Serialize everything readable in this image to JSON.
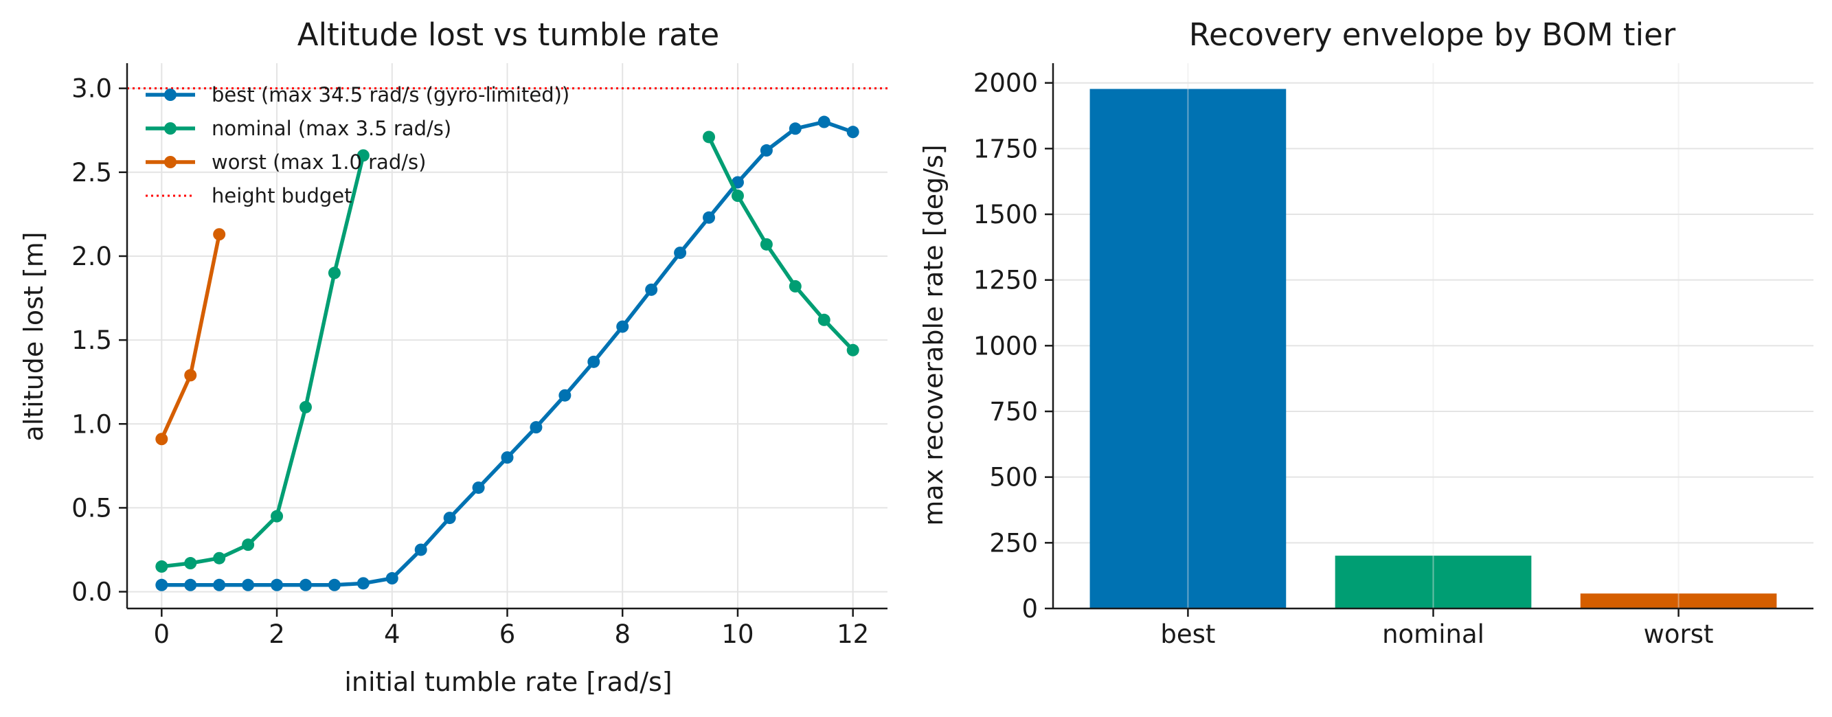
{
  "colors": {
    "best": "#0072b2",
    "nominal": "#009e73",
    "worst": "#d55e00",
    "budget": "#ff0000"
  },
  "chart_data": [
    {
      "type": "line",
      "title": "Altitude lost vs tumble rate",
      "xlabel": "initial tumble rate [rad/s]",
      "ylabel": "altitude lost [m]",
      "xlim": [
        -0.6,
        12.6
      ],
      "ylim": [
        -0.1,
        3.15
      ],
      "xticks": [
        0,
        2,
        4,
        6,
        8,
        10,
        12
      ],
      "yticks": [
        0.0,
        0.5,
        1.0,
        1.5,
        2.0,
        2.5,
        3.0
      ],
      "grid": true,
      "legend_position": "upper-left",
      "series": [
        {
          "key": "best",
          "name": "best (max 34.5 rad/s (gyro-limited))",
          "marker": "circle",
          "x": [
            0,
            0.5,
            1,
            1.5,
            2,
            2.5,
            3,
            3.5,
            4,
            4.5,
            5,
            5.5,
            6,
            6.5,
            7,
            7.5,
            8,
            8.5,
            9,
            9.5,
            10,
            10.5,
            11,
            11.5,
            12
          ],
          "y": [
            0.04,
            0.04,
            0.04,
            0.04,
            0.04,
            0.04,
            0.04,
            0.05,
            0.08,
            0.25,
            0.44,
            0.62,
            0.8,
            0.98,
            1.17,
            1.37,
            1.58,
            1.8,
            2.02,
            2.23,
            2.44,
            2.63,
            2.76,
            2.8,
            2.74
          ]
        },
        {
          "key": "nominal",
          "name": "nominal (max 3.5 rad/s)",
          "marker": "circle",
          "segments": [
            {
              "x": [
                0,
                0.5,
                1,
                1.5,
                2,
                2.5,
                3,
                3.5
              ],
              "y": [
                0.15,
                0.17,
                0.2,
                0.28,
                0.45,
                1.1,
                1.9,
                2.6
              ]
            },
            {
              "x": [
                9.5,
                10,
                10.5,
                11,
                11.5,
                12
              ],
              "y": [
                2.71,
                2.36,
                2.07,
                1.82,
                1.62,
                1.44
              ]
            }
          ]
        },
        {
          "key": "worst",
          "name": "worst (max 1.0 rad/s)",
          "marker": "circle",
          "x": [
            0,
            0.5,
            1
          ],
          "y": [
            0.91,
            1.29,
            2.13
          ]
        },
        {
          "key": "budget",
          "name": "height budget",
          "style": "dotted-horizontal",
          "y": 3.0
        }
      ]
    },
    {
      "type": "bar",
      "title": "Recovery envelope by BOM tier",
      "xlabel": "",
      "ylabel": "max recoverable rate [deg/s]",
      "categories": [
        "best",
        "nominal",
        "worst"
      ],
      "values": [
        1977,
        201,
        57
      ],
      "ylim": [
        0,
        2075
      ],
      "yticks": [
        0,
        250,
        500,
        750,
        1000,
        1250,
        1500,
        1750,
        2000
      ],
      "grid": true
    }
  ]
}
